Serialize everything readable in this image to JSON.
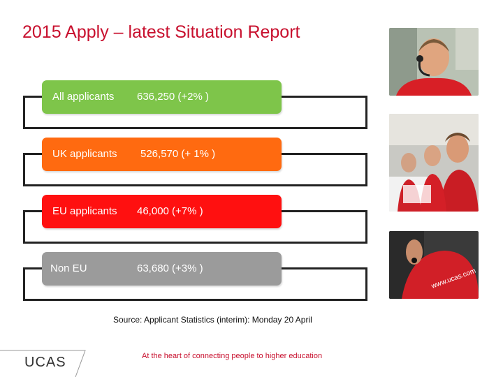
{
  "slide": {
    "title": "2015 Apply – latest Situation Report"
  },
  "rows": [
    {
      "label": "All applicants",
      "value": "636,250 (+2% )",
      "color": "#7ec54a"
    },
    {
      "label": "UK applicants",
      "value": "526,570 (+ 1% )",
      "color": "#ff6a10"
    },
    {
      "label": "EU applicants",
      "value": "46,000 (+7% )",
      "color": "#ff1010"
    },
    {
      "label": "Non EU",
      "value": "63,680 (+3% )",
      "color": "#9b9b9b"
    }
  ],
  "source_note": "Source: Applicant Statistics (interim): Monday 20 April",
  "footer": {
    "tagline": "At the heart of connecting people to higher education",
    "logo_text": "UCAS"
  },
  "photos": [
    {
      "subject": "call-center-agent-headset"
    },
    {
      "subject": "call-center-team"
    },
    {
      "subject": "agent-ucas-shirt"
    }
  ]
}
